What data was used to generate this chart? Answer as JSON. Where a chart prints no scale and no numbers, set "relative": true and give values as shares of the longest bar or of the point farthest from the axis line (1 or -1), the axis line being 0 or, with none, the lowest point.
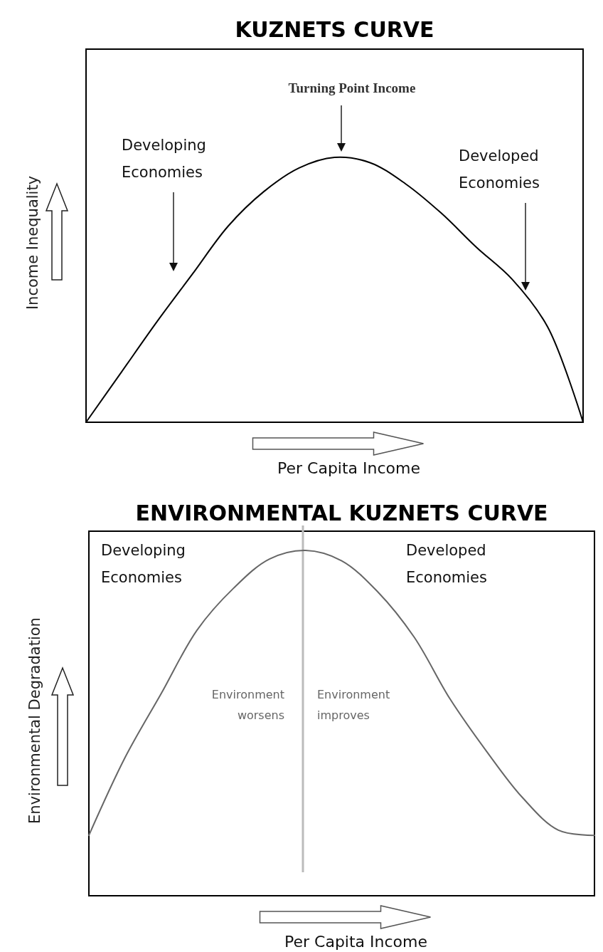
{
  "chart_data": [
    {
      "type": "line",
      "title": "KUZNETS CURVE",
      "xlabel": "Per Capita Income",
      "ylabel": "Income Inequality",
      "relative": true,
      "categories": [
        null,
        null,
        null,
        null,
        null,
        null,
        null,
        null,
        null,
        null,
        null,
        null,
        null,
        null,
        null
      ],
      "series": [
        {
          "color": "#000000",
          "values": [
            0,
            0.19,
            0.38,
            0.56,
            0.74,
            0.87,
            0.96,
            1,
            0.98,
            0.9,
            0.79,
            0.66,
            0.54,
            0.36,
            0
          ]
        }
      ],
      "annotations": [
        "Turning Point Income",
        "Developing Economies",
        "Developed Economies"
      ]
    },
    {
      "type": "line",
      "title": "ENVIRONMENTAL KUZNETS CURVE",
      "xlabel": "Per Capita Income",
      "ylabel": "Environmental Degradation",
      "relative": true,
      "categories": [
        null,
        null,
        null,
        null,
        null,
        null,
        null,
        null,
        null,
        null,
        null,
        null,
        null,
        null,
        null
      ],
      "series": [
        {
          "color": "#666666",
          "values": [
            0.175,
            0.4,
            0.585,
            0.77,
            0.89,
            0.975,
            1,
            0.97,
            0.88,
            0.75,
            0.57,
            0.42,
            0.285,
            0.19,
            0.175
          ]
        }
      ],
      "annotations": [
        "Developing Economies",
        "Developed Economies",
        "Environment worsens",
        "Environment improves"
      ]
    }
  ]
}
